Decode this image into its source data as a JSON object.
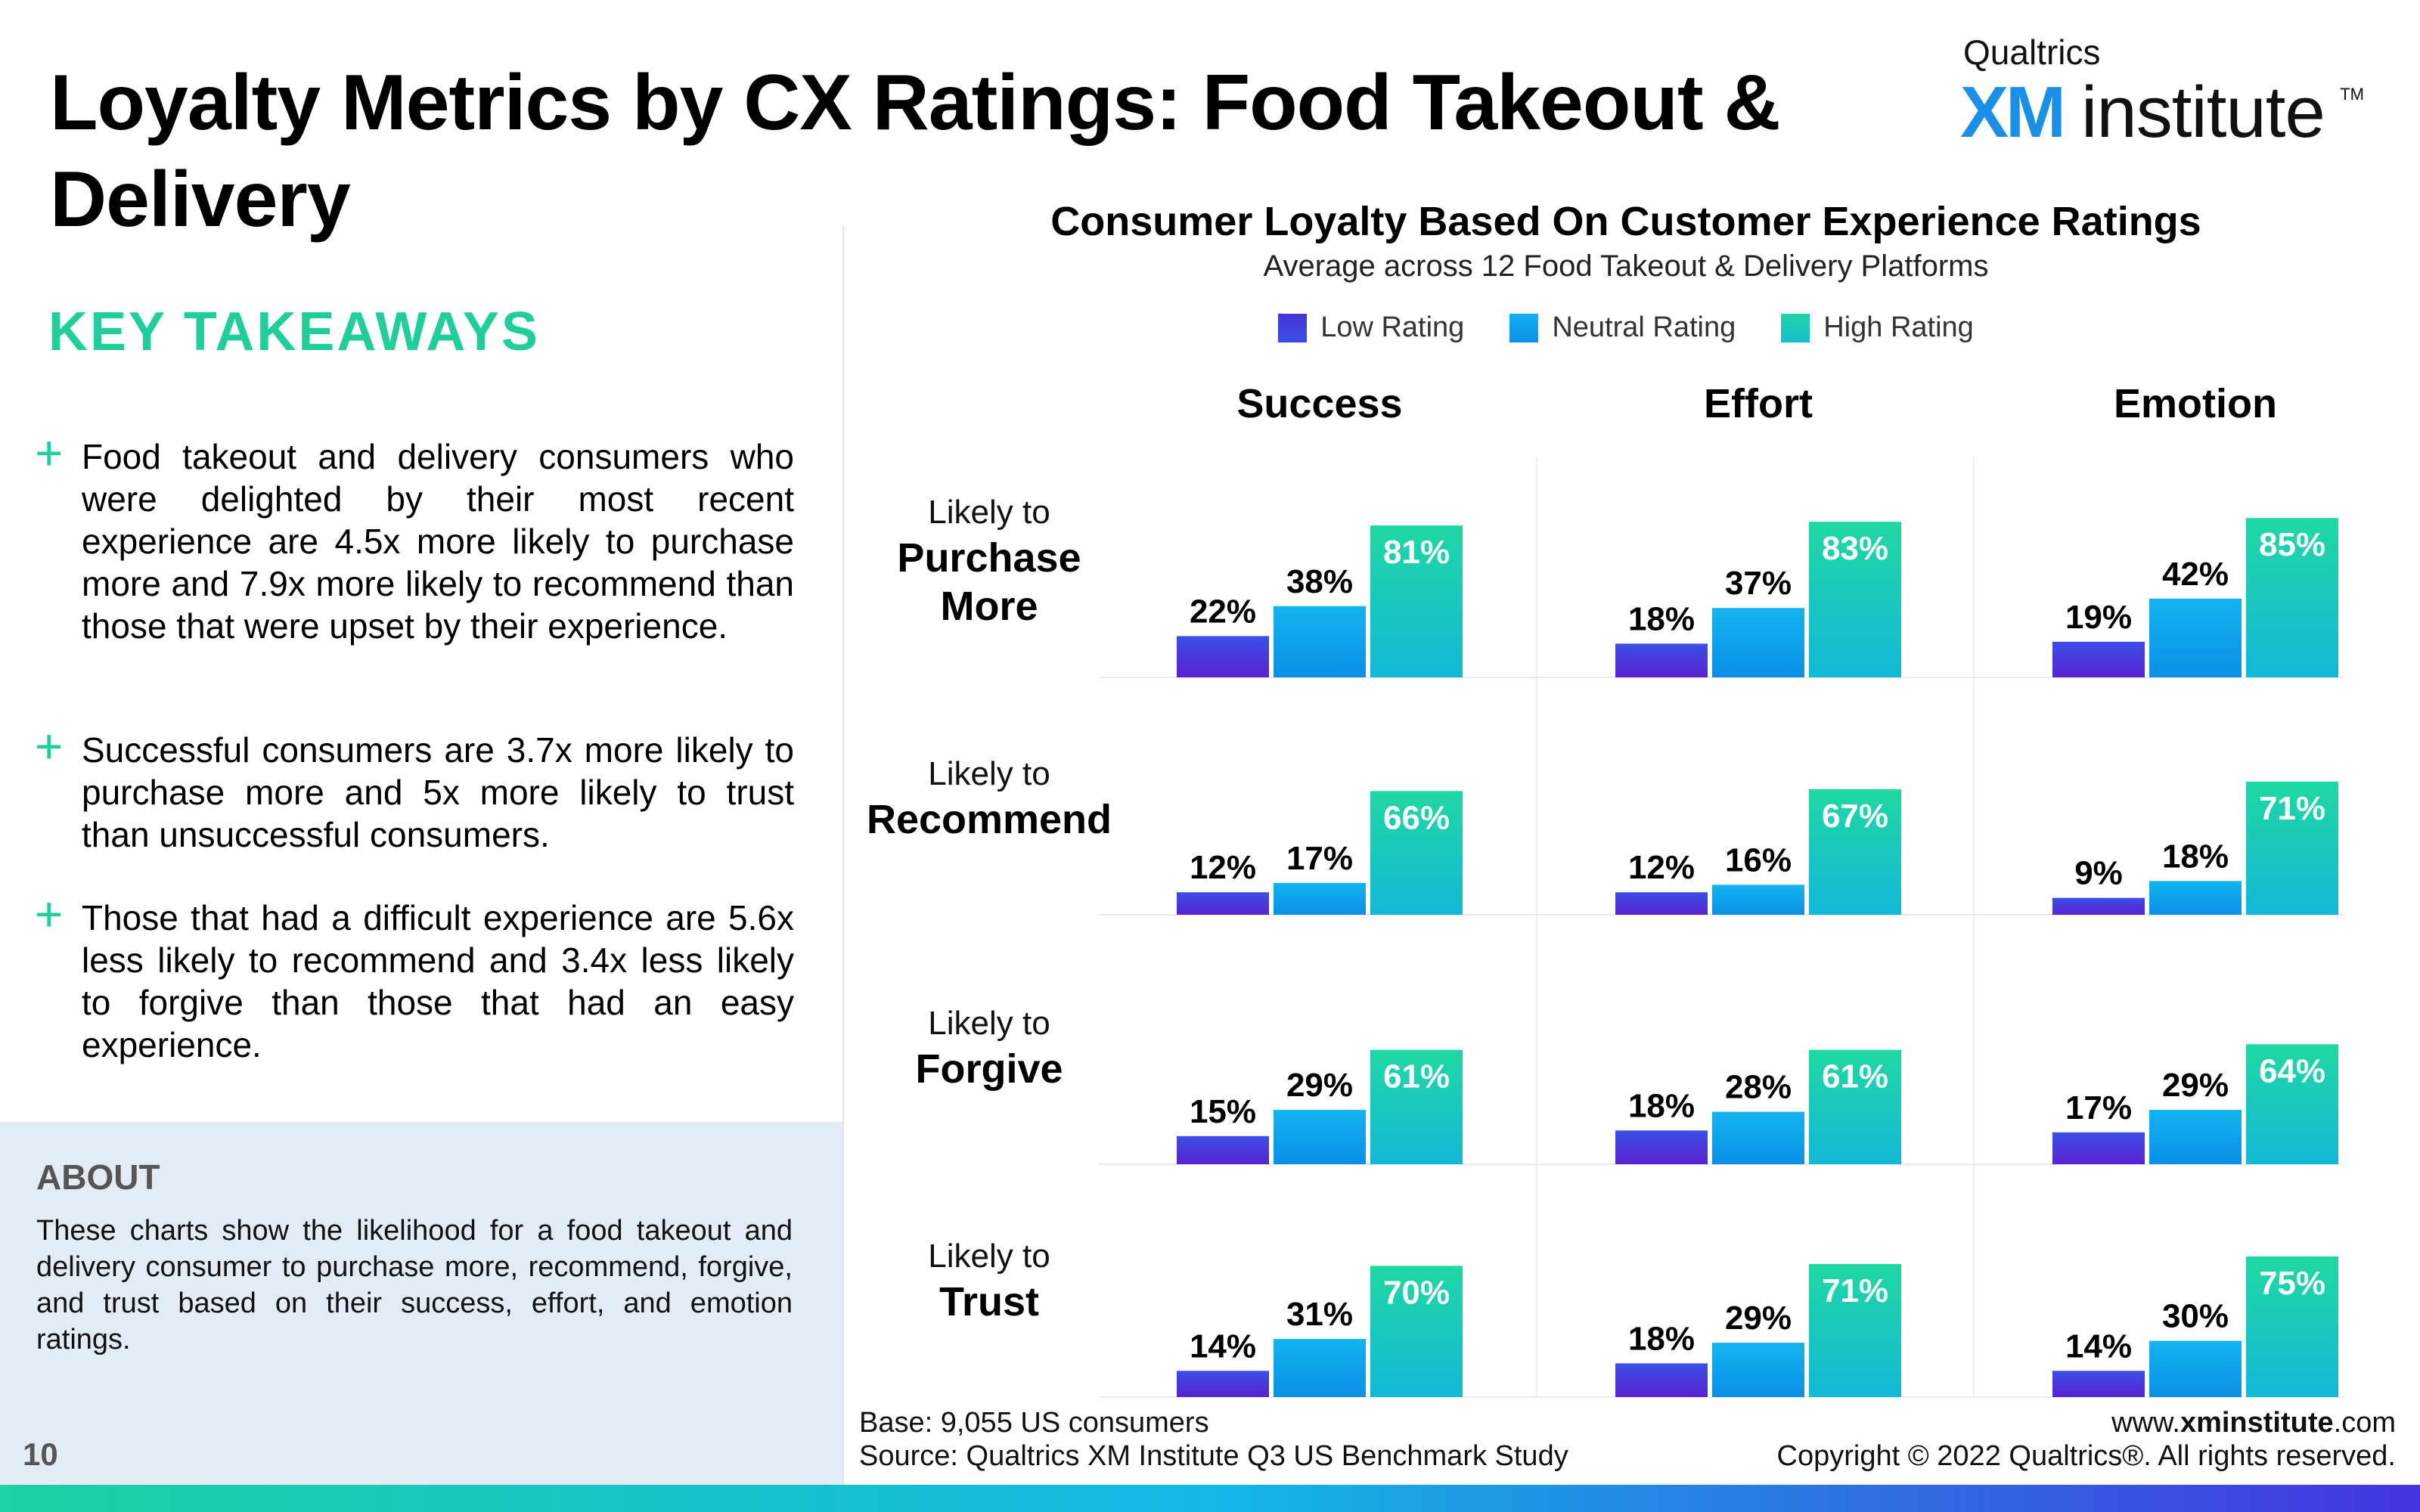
{
  "header": {
    "title": "Loyalty Metrics by CX Ratings: Food Takeout & Delivery",
    "logo_brand": "Qualtrics",
    "logo_xm": "XM",
    "logo_institute": "institute",
    "logo_tm": "TM"
  },
  "takeaways": {
    "heading": "KEY TAKEAWAYS",
    "items": [
      "Food takeout and delivery consumers who were delighted by their most recent experience are 4.5x more likely to purchase more and 7.9x more likely to recommend than those that were upset by their experience.",
      "Successful consumers are 3.7x more likely to purchase more and 5x more likely to trust than unsuccessful consumers.",
      "Those that had a difficult experience are 5.6x less likely to recommend and 3.4x less likely to forgive than those that had an easy experience."
    ]
  },
  "about": {
    "heading": "ABOUT",
    "text": "These charts show the likelihood for a food takeout and delivery consumer to purchase more, recommend, forgive, and trust based on their success, effort, and emotion ratings."
  },
  "page_number": "10",
  "footer": {
    "base": "Base: 9,055 US consumers",
    "source": "Source: Qualtrics XM Institute Q3 US Benchmark Study",
    "website_prefix": "www.",
    "website_bold": "xminstitute",
    "website_suffix": ".com",
    "copyright": "Copyright © 2022 Qualtrics®. All rights reserved."
  },
  "chart_data": {
    "type": "bar",
    "title": "Consumer Loyalty Based On Customer Experience Ratings",
    "subtitle": "Average across 12 Food Takeout & Delivery Platforms",
    "legend_position": "top-center",
    "series": [
      {
        "name": "Low Rating",
        "color": "#4a33d6"
      },
      {
        "name": "Neutral Rating",
        "color": "#12aef0"
      },
      {
        "name": "High Rating",
        "color": "#1fd4a4"
      }
    ],
    "columns": [
      "Success",
      "Effort",
      "Emotion"
    ],
    "rows": [
      {
        "prefix": "Likely to",
        "metric": "Purchase More",
        "values": [
          [
            22,
            38,
            81
          ],
          [
            18,
            37,
            83
          ],
          [
            19,
            42,
            85
          ]
        ]
      },
      {
        "prefix": "Likely to",
        "metric": "Recommend",
        "values": [
          [
            12,
            17,
            66
          ],
          [
            12,
            16,
            67
          ],
          [
            9,
            18,
            71
          ]
        ]
      },
      {
        "prefix": "Likely to",
        "metric": "Forgive",
        "values": [
          [
            15,
            29,
            61
          ],
          [
            18,
            28,
            61
          ],
          [
            17,
            29,
            64
          ]
        ]
      },
      {
        "prefix": "Likely to",
        "metric": "Trust",
        "values": [
          [
            14,
            31,
            70
          ],
          [
            18,
            29,
            71
          ],
          [
            14,
            30,
            75
          ]
        ]
      }
    ],
    "value_suffix": "%",
    "ylim": [
      0,
      100
    ],
    "grid": false
  }
}
